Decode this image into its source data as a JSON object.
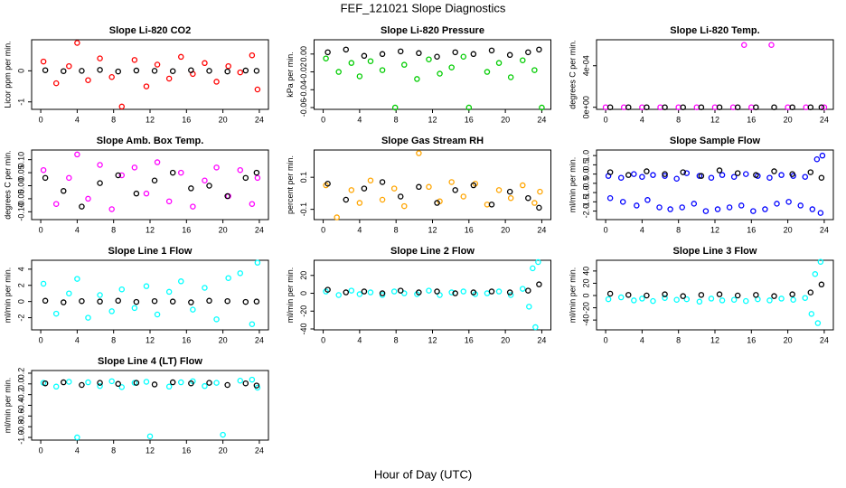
{
  "title": "FEF_121021  Slope Diagnostics",
  "xlabel": "Hour of Day (UTC)",
  "chart_data": [
    {
      "type": "scatter",
      "title": "Slope Li-820 CO2",
      "ylabel": "Licor ppm per min.",
      "xlim": [
        -1,
        25
      ],
      "xticks": [
        0,
        4,
        8,
        12,
        16,
        20,
        24
      ],
      "ylim": [
        -1.24,
        1.0
      ],
      "yticks": [
        -1,
        0
      ],
      "series": [
        {
          "color": "#ff0000",
          "x": [
            0.3,
            1.7,
            3.1,
            4.0,
            5.2,
            6.5,
            7.8,
            8.9,
            10.3,
            11.6,
            12.8,
            14.1,
            15.4,
            16.7,
            18.0,
            19.3,
            20.6,
            21.9,
            23.2,
            23.8
          ],
          "values": [
            0.3,
            -0.4,
            0.15,
            0.9,
            -0.3,
            0.4,
            -0.2,
            -1.15,
            0.35,
            -0.5,
            0.2,
            -0.25,
            0.45,
            -0.1,
            0.25,
            -0.35,
            0.15,
            -0.05,
            0.5,
            -0.6
          ]
        },
        {
          "color": "#000000",
          "x": [
            0.5,
            2.5,
            4.5,
            6.5,
            8.5,
            10.5,
            12.5,
            14.5,
            16.5,
            18.5,
            20.5,
            22.5,
            23.7
          ],
          "values": [
            0.02,
            -0.01,
            0,
            0.03,
            -0.02,
            0.01,
            0,
            -0.01,
            0.02,
            0,
            -0.02,
            0.01,
            0
          ]
        }
      ]
    },
    {
      "type": "scatter",
      "title": "Slope Li-820 Pressure",
      "ylabel": "kPa per min.",
      "xlim": [
        -1,
        25
      ],
      "xticks": [
        0,
        4,
        8,
        12,
        16,
        20,
        24
      ],
      "ylim": [
        -0.062,
        0.016
      ],
      "yticks": [
        -0.06,
        -0.04,
        -0.02,
        {
          "value": 0,
          "label": "0.00"
        }
      ],
      "series": [
        {
          "color": "#00cc00",
          "x": [
            0.3,
            1.7,
            3.1,
            4.0,
            5.2,
            6.5,
            7.9,
            8.9,
            10.3,
            11.6,
            12.8,
            14.1,
            15.4,
            16.0,
            18.0,
            19.3,
            20.6,
            21.9,
            23.2,
            24.0
          ],
          "values": [
            -0.005,
            -0.02,
            -0.01,
            -0.025,
            -0.008,
            -0.018,
            -0.06,
            -0.012,
            -0.028,
            -0.006,
            -0.022,
            -0.015,
            -0.003,
            -0.06,
            -0.02,
            -0.01,
            -0.026,
            -0.007,
            -0.018,
            -0.06
          ]
        },
        {
          "color": "#000000",
          "x": [
            0.5,
            2.5,
            4.5,
            6.5,
            8.5,
            10.5,
            12.5,
            14.5,
            16.5,
            18.5,
            20.5,
            22.5,
            23.7
          ],
          "values": [
            0.002,
            0.005,
            -0.002,
            0,
            0.003,
            0.001,
            -0.003,
            0.002,
            0,
            0.004,
            -0.001,
            0.002,
            0.005
          ]
        }
      ]
    },
    {
      "type": "scatter",
      "title": "Slope Li-820 Temp.",
      "ylabel": "degrees C per min.",
      "xlim": [
        -1,
        25
      ],
      "xticks": [
        0,
        4,
        8,
        12,
        16,
        20,
        24
      ],
      "ylim": [
        -2e-05,
        0.00065
      ],
      "yticks": [
        {
          "value": 0,
          "label": "0e+00"
        },
        {
          "value": 0.0004,
          "label": "4e-04"
        }
      ],
      "series": [
        {
          "color": "#ff00ff",
          "x": [
            0,
            2,
            4,
            6,
            8,
            10,
            12,
            14,
            15.2,
            16,
            18.2,
            20,
            22,
            24
          ],
          "values": [
            0,
            0,
            0,
            0,
            0,
            0,
            0,
            0,
            0.0006,
            0,
            0.0006,
            0,
            0,
            0
          ]
        },
        {
          "color": "#000000",
          "x": [
            0.5,
            2.5,
            4.5,
            6.5,
            8.5,
            10.5,
            12.5,
            14.5,
            16.5,
            18.5,
            20.5,
            22.5,
            23.7
          ],
          "values": [
            0,
            0,
            0,
            0,
            0,
            0,
            0,
            0,
            0,
            0,
            0,
            0,
            0
          ]
        }
      ]
    },
    {
      "type": "scatter",
      "title": "Slope Amb. Box Temp.",
      "ylabel": "degrees C per min.",
      "xlim": [
        -1,
        25
      ],
      "xticks": [
        0,
        4,
        8,
        12,
        16,
        20,
        24
      ],
      "ylim": [
        -0.13,
        0.137
      ],
      "yticks": [
        {
          "value": -0.1,
          "label": "-0.10"
        },
        {
          "value": -0.05,
          "label": "-0.05"
        },
        {
          "value": 0,
          "label": "0.00"
        },
        {
          "value": 0.05,
          "label": "0.05"
        },
        {
          "value": 0.1,
          "label": "0.10"
        }
      ],
      "series": [
        {
          "color": "#ff00ff",
          "x": [
            0.3,
            1.7,
            3.1,
            4.0,
            5.2,
            6.5,
            7.8,
            8.9,
            10.3,
            11.6,
            12.8,
            14.1,
            15.4,
            16.7,
            18.0,
            19.3,
            20.6,
            21.9,
            23.2,
            23.8
          ],
          "values": [
            0.06,
            -0.07,
            0.03,
            0.12,
            -0.05,
            0.08,
            -0.09,
            0.04,
            0.07,
            -0.03,
            0.09,
            -0.06,
            0.05,
            -0.08,
            0.02,
            0.07,
            -0.04,
            0.06,
            -0.07,
            0.03
          ]
        },
        {
          "color": "#000000",
          "x": [
            0.5,
            2.5,
            4.5,
            6.5,
            8.5,
            10.5,
            12.5,
            14.5,
            16.5,
            18.5,
            20.5,
            22.5,
            23.7
          ],
          "values": [
            0.03,
            -0.02,
            -0.08,
            0.01,
            0.04,
            -0.03,
            0.02,
            0.05,
            -0.01,
            0.0,
            -0.04,
            0.03,
            0.05
          ]
        }
      ]
    },
    {
      "type": "scatter",
      "title": "Slope Gas Stream RH",
      "ylabel": "percent per min.",
      "xlim": [
        -1,
        25
      ],
      "xticks": [
        0,
        4,
        8,
        12,
        16,
        20,
        24
      ],
      "ylim": [
        -0.164,
        0.27
      ],
      "yticks": [
        -0.1,
        0.1
      ],
      "series": [
        {
          "color": "#ffa500",
          "x": [
            0.3,
            1.5,
            3.1,
            4.0,
            5.2,
            6.5,
            7.8,
            8.9,
            10.5,
            11.6,
            12.8,
            14.1,
            15.4,
            16.7,
            18.0,
            19.3,
            20.6,
            21.9,
            23.2,
            23.8
          ],
          "values": [
            0.05,
            -0.15,
            0.02,
            -0.06,
            0.08,
            -0.04,
            0.03,
            -0.08,
            0.25,
            0.04,
            -0.05,
            0.07,
            -0.02,
            0.06,
            -0.07,
            0.02,
            -0.03,
            0.05,
            -0.06,
            0.01
          ]
        },
        {
          "color": "#000000",
          "x": [
            0.5,
            2.5,
            4.5,
            6.5,
            8.5,
            10.5,
            12.5,
            14.5,
            16.5,
            18.5,
            20.5,
            22.5,
            23.7
          ],
          "values": [
            0.06,
            -0.04,
            0.03,
            0.07,
            -0.02,
            0.04,
            -0.06,
            0.02,
            0.05,
            -0.07,
            0.01,
            -0.03,
            -0.09
          ]
        }
      ]
    },
    {
      "type": "scatter",
      "title": "Slope Sample Flow",
      "ylabel": "ml/min per min.",
      "xlim": [
        -1,
        25
      ],
      "xticks": [
        0,
        4,
        8,
        12,
        16,
        20,
        24
      ],
      "ylim": [
        -2.46,
        1.3
      ],
      "yticks": [
        {
          "value": -2,
          "label": "-2.0"
        },
        -1.5,
        {
          "value": -1,
          "label": "-1.0"
        },
        -0.5,
        {
          "value": 0,
          "label": "0.0"
        },
        0.5,
        {
          "value": 1,
          "label": "1.0"
        }
      ],
      "series": [
        {
          "color": "#0000ff",
          "x": [
            0.3,
            1.7,
            3.1,
            4.0,
            5.2,
            6.5,
            7.8,
            8.9,
            10.3,
            11.6,
            12.8,
            14.1,
            15.4,
            16.7,
            18.0,
            19.3,
            20.6,
            21.9,
            23.2,
            23.8
          ],
          "values": [
            -0.1,
            -0.2,
            0.0,
            -0.15,
            -0.05,
            -0.1,
            -0.25,
            0.05,
            -0.1,
            -0.2,
            -0.05,
            -0.15,
            0.0,
            -0.1,
            -0.2,
            -0.05,
            -0.1,
            -0.15,
            0.8,
            1.0
          ]
        },
        {
          "color": "#0000ff",
          "x": [
            0.5,
            1.9,
            3.4,
            4.6,
            5.9,
            7.1,
            8.4,
            9.7,
            11.0,
            12.3,
            13.6,
            14.9,
            16.2,
            17.5,
            18.8,
            20.1,
            21.4,
            22.7,
            23.6
          ],
          "values": [
            -1.3,
            -1.5,
            -1.7,
            -1.4,
            -1.8,
            -1.9,
            -1.8,
            -1.6,
            -2.0,
            -1.9,
            -1.8,
            -1.7,
            -2.0,
            -1.9,
            -1.6,
            -1.5,
            -1.7,
            -1.9,
            -2.1
          ]
        },
        {
          "color": "#000000",
          "x": [
            0.5,
            2.5,
            4.5,
            6.5,
            8.5,
            10.5,
            12.5,
            14.5,
            16.5,
            18.5,
            20.5,
            22.5,
            23.7
          ],
          "values": [
            0.1,
            -0.05,
            0.15,
            0.0,
            0.1,
            -0.1,
            0.2,
            0.05,
            -0.05,
            0.15,
            0.0,
            0.1,
            -0.2
          ]
        }
      ]
    },
    {
      "type": "scatter",
      "title": "Slope Line 1 Flow",
      "ylabel": "ml/min per min.",
      "xlim": [
        -1,
        25
      ],
      "xticks": [
        0,
        4,
        8,
        12,
        16,
        20,
        24
      ],
      "ylim": [
        -3.5,
        5.1
      ],
      "yticks": [
        -2,
        0,
        2,
        4
      ],
      "series": [
        {
          "color": "#00ffff",
          "x": [
            0.3,
            1.7,
            3.1,
            4.0,
            5.2,
            6.5,
            7.8,
            8.9,
            10.3,
            11.6,
            12.8,
            14.1,
            15.4,
            16.7,
            18.0,
            19.3,
            20.6,
            21.9,
            23.2,
            23.8
          ],
          "values": [
            2.2,
            -1.5,
            1.0,
            2.8,
            -2.0,
            0.8,
            -1.2,
            1.5,
            -0.8,
            1.9,
            -1.6,
            1.2,
            2.5,
            -1.0,
            1.7,
            -2.2,
            2.9,
            3.5,
            -2.8,
            4.8
          ]
        },
        {
          "color": "#000000",
          "x": [
            0.5,
            2.5,
            4.5,
            6.5,
            8.5,
            10.5,
            12.5,
            14.5,
            16.5,
            18.5,
            20.5,
            22.5,
            23.7
          ],
          "values": [
            0.1,
            -0.1,
            0.05,
            0,
            0.1,
            -0.05,
            0.05,
            0,
            -0.1,
            0.1,
            0.05,
            -0.05,
            0
          ]
        }
      ]
    },
    {
      "type": "scatter",
      "title": "Slope Line 2 Flow",
      "ylabel": "ml/min per min.",
      "xlim": [
        -1,
        25
      ],
      "xticks": [
        0,
        4,
        8,
        12,
        16,
        20,
        24
      ],
      "ylim": [
        -41,
        37
      ],
      "yticks": [
        -40,
        -20,
        0,
        20
      ],
      "series": [
        {
          "color": "#00ffff",
          "x": [
            0.3,
            1.7,
            3.1,
            4.0,
            5.2,
            6.5,
            7.8,
            8.9,
            10.3,
            11.6,
            12.8,
            14.1,
            15.4,
            16.7,
            18.0,
            19.3,
            20.6,
            21.9,
            22.6,
            23.0,
            23.3,
            23.6
          ],
          "values": [
            2,
            -2,
            3,
            -1,
            1,
            -2,
            2,
            0,
            -1,
            3,
            -2,
            1,
            2,
            -1,
            0,
            2,
            -2,
            5,
            -15,
            28,
            -38,
            35
          ]
        },
        {
          "color": "#000000",
          "x": [
            0.5,
            2.5,
            4.5,
            6.5,
            8.5,
            10.5,
            12.5,
            14.5,
            16.5,
            18.5,
            20.5,
            22.5,
            23.7
          ],
          "values": [
            4,
            1,
            2,
            0,
            3,
            1,
            2,
            0,
            1,
            2,
            1,
            3,
            10
          ]
        }
      ]
    },
    {
      "type": "scatter",
      "title": "Slope Line 3 Flow",
      "ylabel": "ml/min per min.",
      "xlim": [
        -1,
        25
      ],
      "xticks": [
        0,
        4,
        8,
        12,
        16,
        20,
        24
      ],
      "ylim": [
        -56,
        57.5
      ],
      "yticks": [
        -40,
        -20,
        0,
        20,
        40
      ],
      "series": [
        {
          "color": "#00ffff",
          "x": [
            0.3,
            1.7,
            3.1,
            4.0,
            5.2,
            6.5,
            7.8,
            8.9,
            10.3,
            11.6,
            12.8,
            14.1,
            15.4,
            16.7,
            18.0,
            19.3,
            20.6,
            21.9,
            22.6,
            23.0,
            23.3,
            23.6
          ],
          "values": [
            -6,
            -3,
            -8,
            -5,
            -9,
            -4,
            -7,
            -6,
            -10,
            -5,
            -8,
            -7,
            -9,
            -6,
            -8,
            -5,
            -7,
            -4,
            -30,
            35,
            -45,
            55
          ]
        },
        {
          "color": "#000000",
          "x": [
            0.5,
            2.5,
            4.5,
            6.5,
            8.5,
            10.5,
            12.5,
            14.5,
            16.5,
            18.5,
            20.5,
            22.5,
            23.7
          ],
          "values": [
            3,
            1,
            0,
            2,
            -1,
            1,
            2,
            0,
            1,
            -1,
            2,
            5,
            18
          ]
        }
      ]
    },
    {
      "type": "scatter",
      "title": "Slope Line 4 (LT) Flow",
      "ylabel": "ml/min per min.",
      "xlim": [
        -1,
        25
      ],
      "xticks": [
        0,
        4,
        8,
        12,
        16,
        20,
        24
      ],
      "ylim": [
        -1.05,
        0.25
      ],
      "yticks": [
        {
          "value": -1,
          "label": "-1.0"
        },
        -0.8,
        -0.6,
        -0.4,
        -0.2,
        {
          "value": 0,
          "label": "0.0"
        },
        0.2
      ],
      "series": [
        {
          "color": "#00ffff",
          "x": [
            0.3,
            1.7,
            3.1,
            4.0,
            5.2,
            6.5,
            7.8,
            8.9,
            10.3,
            11.6,
            12.0,
            14.1,
            15.4,
            16.7,
            18.0,
            19.3,
            20.0,
            21.9,
            23.2,
            23.8
          ],
          "values": [
            0.02,
            -0.05,
            0.04,
            -1.0,
            0.03,
            -0.04,
            0.05,
            -0.06,
            0.02,
            0.04,
            -0.98,
            -0.05,
            0.03,
            0.05,
            -0.04,
            0.02,
            -0.95,
            0.06,
            0.08,
            -0.07
          ]
        },
        {
          "color": "#000000",
          "x": [
            0.5,
            2.5,
            4.5,
            6.5,
            8.5,
            10.5,
            12.5,
            14.5,
            16.5,
            18.5,
            20.5,
            22.5,
            23.7
          ],
          "values": [
            0.01,
            0.03,
            -0.02,
            0.02,
            0.0,
            0.02,
            -0.01,
            0.03,
            0.01,
            0.02,
            -0.02,
            0.01,
            -0.03
          ]
        }
      ]
    }
  ]
}
